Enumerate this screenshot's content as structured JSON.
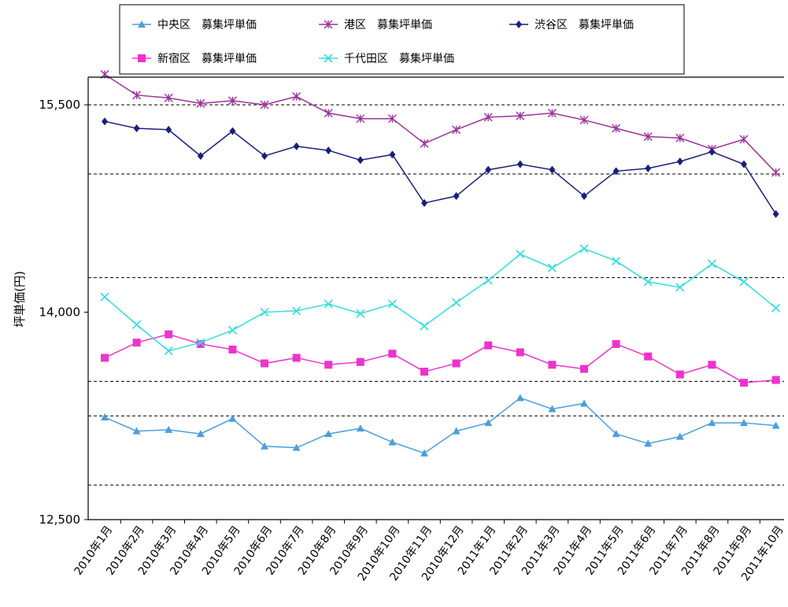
{
  "chart_data": {
    "type": "line",
    "ylabel": "坪単価(円)",
    "ylim": [
      12500,
      15700
    ],
    "yticks": [
      12500,
      14000,
      15500
    ],
    "ytick_labels": [
      "12,500",
      "14,000",
      "15,500"
    ],
    "dashed_gridlines": [
      12750,
      13250,
      13500,
      14250,
      15000,
      15500
    ],
    "legend_position": "top",
    "categories": [
      "2010年1月",
      "2010年2月",
      "2010年3月",
      "2010年4月",
      "2010年5月",
      "2010年6月",
      "2010年7月",
      "2010年8月",
      "2010年9月",
      "2010年10月",
      "2010年11月",
      "2010年12月",
      "2011年1月",
      "2011年2月",
      "2011年3月",
      "2011年4月",
      "2011年5月",
      "2011年6月",
      "2011年7月",
      "2011年8月",
      "2011年9月",
      "2011年10月"
    ],
    "series": [
      {
        "name": "中央区　募集坪単価",
        "color": "#4a9fdc",
        "marker": "triangle",
        "values": [
          13240,
          13140,
          13150,
          13120,
          13230,
          13030,
          13020,
          13120,
          13160,
          13060,
          12980,
          13140,
          13200,
          13380,
          13300,
          13340,
          13120,
          13050,
          13100,
          13200,
          13200,
          13180
        ]
      },
      {
        "name": "港区　募集坪単価",
        "color": "#993399",
        "marker": "star",
        "values": [
          15720,
          15570,
          15550,
          15510,
          15530,
          15500,
          15560,
          15440,
          15400,
          15400,
          15220,
          15320,
          15410,
          15420,
          15440,
          15390,
          15330,
          15270,
          15260,
          15180,
          15250,
          15010
        ]
      },
      {
        "name": "渋谷区　募集坪単価",
        "color": "#1a1f7a",
        "marker": "diamond",
        "values": [
          15380,
          15330,
          15320,
          15130,
          15310,
          15130,
          15200,
          15170,
          15100,
          15140,
          14790,
          14840,
          15030,
          15070,
          15030,
          14840,
          15020,
          15040,
          15090,
          15160,
          15070,
          14710
        ]
      },
      {
        "name": "新宿区　募集坪単価",
        "color": "#ee33cc",
        "marker": "square",
        "values": [
          13670,
          13780,
          13840,
          13770,
          13730,
          13630,
          13670,
          13620,
          13640,
          13700,
          13570,
          13630,
          13760,
          13710,
          13620,
          13590,
          13770,
          13680,
          13550,
          13620,
          13490,
          13510
        ]
      },
      {
        "name": "千代田区　募集坪単価",
        "color": "#33dddd",
        "marker": "x",
        "values": [
          14110,
          13910,
          13720,
          13780,
          13870,
          14000,
          14010,
          14060,
          13990,
          14060,
          13900,
          14070,
          14230,
          14420,
          14320,
          14460,
          14370,
          14220,
          14180,
          14350,
          14220,
          14030
        ]
      }
    ]
  }
}
